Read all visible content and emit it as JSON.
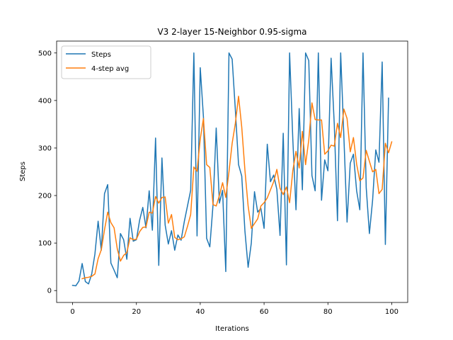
{
  "chart_data": {
    "type": "line",
    "title": "V3 2-layer 15-Neighbor 0.95-sigma",
    "xlabel": "Iterations",
    "ylabel": "Steps",
    "xlim": [
      -5,
      105
    ],
    "ylim": [
      -25,
      525
    ],
    "xticks": [
      0,
      20,
      40,
      60,
      80,
      100
    ],
    "yticks": [
      0,
      100,
      200,
      300,
      400,
      500
    ],
    "legend_position": "top-left",
    "series": [
      {
        "name": "Steps",
        "color": "#1f77b4",
        "x_start": 0,
        "values": [
          11,
          10,
          20,
          57,
          19,
          14,
          35,
          77,
          146,
          85,
          204,
          223,
          58,
          43,
          27,
          120,
          107,
          66,
          152,
          104,
          107,
          148,
          175,
          132,
          210,
          127,
          321,
          53,
          279,
          138,
          98,
          126,
          85,
          117,
          106,
          145,
          178,
          211,
          500,
          115,
          469,
          365,
          110,
          92,
          180,
          342,
          184,
          211,
          40,
          500,
          487,
          380,
          265,
          241,
          125,
          49,
          100,
          208,
          165,
          173,
          131,
          308,
          229,
          243,
          213,
          116,
          331,
          54,
          500,
          319,
          170,
          383,
          212,
          500,
          484,
          242,
          210,
          500,
          190,
          275,
          252,
          489,
          349,
          147,
          500,
          324,
          144,
          268,
          287,
          210,
          170,
          500,
          217,
          120,
          190,
          296,
          270,
          481,
          97,
          405
        ]
      },
      {
        "name": "4-step avg",
        "color": "#ff7f0e",
        "x_start": 3,
        "values": [
          25,
          27,
          28,
          30,
          35,
          67,
          86,
          128,
          165,
          143,
          132,
          88,
          62,
          74,
          80,
          111,
          107,
          108,
          124,
          133,
          134,
          165,
          163,
          198,
          184,
          196,
          197,
          142,
          160,
          112,
          107,
          109,
          113,
          135,
          160,
          260,
          251,
          319,
          362,
          265,
          259,
          181,
          178,
          200,
          227,
          196,
          250,
          310,
          352,
          409,
          344,
          253,
          178,
          131,
          141,
          151,
          178,
          185,
          195,
          212,
          229,
          255,
          215,
          202,
          218,
          185,
          252,
          293,
          258,
          335,
          265,
          317,
          395,
          360,
          359,
          359,
          287,
          294,
          306,
          304,
          352,
          322,
          382,
          362,
          292,
          322,
          266,
          231,
          237,
          295,
          272,
          250,
          255,
          204,
          213,
          310,
          290,
          313
        ]
      }
    ]
  }
}
